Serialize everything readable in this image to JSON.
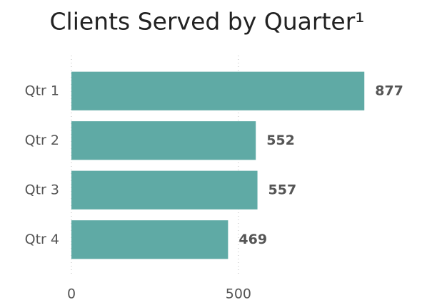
{
  "chart_data": {
    "type": "bar",
    "orientation": "horizontal",
    "title": "Clients Served by Quarter¹",
    "categories": [
      "Qtr 1",
      "Qtr 2",
      "Qtr 3",
      "Qtr 4"
    ],
    "values": [
      877,
      552,
      557,
      469
    ],
    "color": "#5faaa5",
    "xlim": [
      0,
      900
    ],
    "xticks": [
      0,
      500
    ],
    "grid": true
  }
}
